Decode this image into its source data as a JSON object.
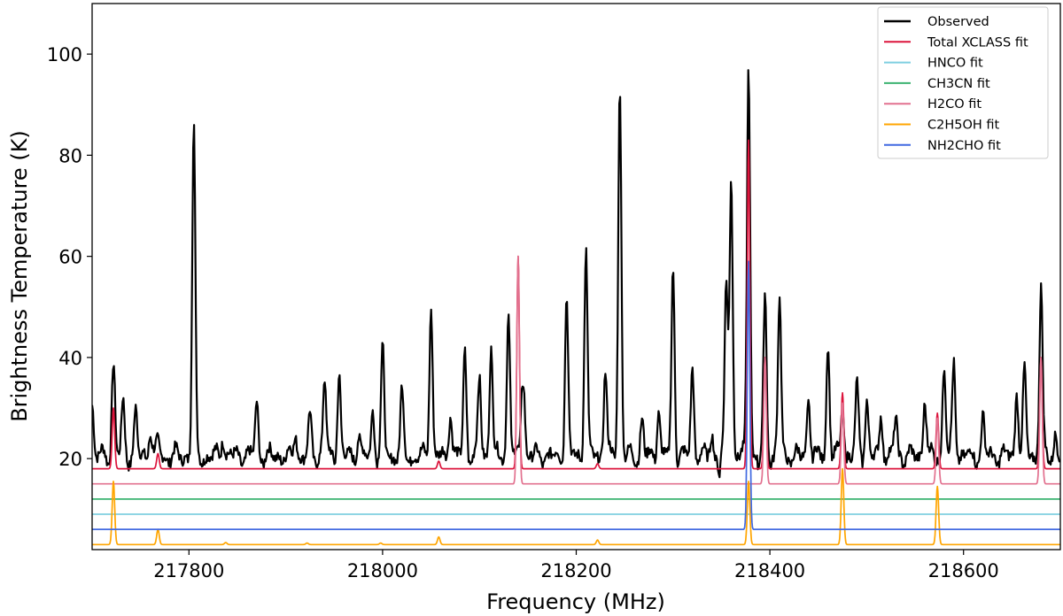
{
  "chart_data": {
    "type": "line",
    "xlabel": "Frequency (MHz)",
    "ylabel": "Brightness Temperature (K)",
    "xlim": [
      217700,
      218700
    ],
    "ylim": [
      2,
      110
    ],
    "x_ticks": [
      217800,
      218000,
      218200,
      218400,
      218600
    ],
    "x_tick_labels": [
      "217800",
      "218000",
      "218200",
      "218400",
      "218600"
    ],
    "y_ticks": [
      20,
      40,
      60,
      80,
      100
    ],
    "y_tick_labels": [
      "20",
      "40",
      "60",
      "80",
      "100"
    ],
    "grid": false,
    "legend_position": "top-right",
    "colors": {
      "observed": "#000000",
      "total": "#dc143c",
      "hnco": "#7fcfe0",
      "ch3cn": "#3cb371",
      "h2co": "#e2718f",
      "c2h5oh": "#ffa500",
      "nh2cho": "#4169e1"
    },
    "series": [
      {
        "name": "Observed",
        "key": "observed",
        "baseline": 20.5,
        "peaks": [
          [
            217700,
            31
          ],
          [
            217722,
            39
          ],
          [
            217732,
            31
          ],
          [
            217745,
            29
          ],
          [
            217760,
            26
          ],
          [
            217768,
            23
          ],
          [
            217805,
            85
          ],
          [
            217835,
            25
          ],
          [
            217870,
            31
          ],
          [
            217910,
            25
          ],
          [
            217925,
            28
          ],
          [
            217940,
            36
          ],
          [
            217955,
            37
          ],
          [
            217975,
            25
          ],
          [
            217990,
            30
          ],
          [
            218000,
            41
          ],
          [
            218020,
            33
          ],
          [
            218050,
            51
          ],
          [
            218070,
            30
          ],
          [
            218085,
            41
          ],
          [
            218100,
            36
          ],
          [
            218112,
            43
          ],
          [
            218130,
            49
          ],
          [
            218145,
            44
          ],
          [
            218190,
            53
          ],
          [
            218210,
            62
          ],
          [
            218230,
            38
          ],
          [
            218245,
            95
          ],
          [
            218268,
            28
          ],
          [
            218285,
            30
          ],
          [
            218300,
            58
          ],
          [
            218320,
            38
          ],
          [
            218340,
            25
          ],
          [
            218355,
            55
          ],
          [
            218360,
            77
          ],
          [
            218378,
            99
          ],
          [
            218395,
            52
          ],
          [
            218410,
            52
          ],
          [
            218440,
            32
          ],
          [
            218460,
            43
          ],
          [
            218475,
            30
          ],
          [
            218490,
            34
          ],
          [
            218500,
            32
          ],
          [
            218515,
            29
          ],
          [
            218530,
            28
          ],
          [
            218560,
            32
          ],
          [
            218580,
            39
          ],
          [
            218590,
            39
          ],
          [
            218620,
            28
          ],
          [
            218655,
            34
          ],
          [
            218663,
            37
          ],
          [
            218680,
            54
          ],
          [
            218695,
            25
          ]
        ],
        "dips": [
          [
            218145,
            13
          ],
          [
            218348,
            17
          ],
          [
            218388,
            18
          ]
        ]
      },
      {
        "name": "Total XCLASS fit",
        "key": "total",
        "baseline": 18,
        "peaks": [
          [
            217722,
            30
          ],
          [
            217768,
            21
          ],
          [
            218058,
            19.5
          ],
          [
            218222,
            19
          ],
          [
            218140,
            60
          ],
          [
            218378,
            83
          ],
          [
            218395,
            40
          ],
          [
            218475,
            33
          ],
          [
            218573,
            29
          ],
          [
            218680,
            40
          ]
        ]
      },
      {
        "name": "HNCO fit",
        "key": "hnco",
        "baseline": 9,
        "peaks": []
      },
      {
        "name": "CH3CN fit",
        "key": "ch3cn",
        "baseline": 12,
        "peaks": []
      },
      {
        "name": "H2CO fit",
        "key": "h2co",
        "baseline": 15,
        "peaks": [
          [
            218140,
            60
          ],
          [
            218395,
            40
          ],
          [
            218475,
            31
          ],
          [
            218573,
            28
          ],
          [
            218680,
            40
          ]
        ]
      },
      {
        "name": "C2H5OH fit",
        "key": "c2h5oh",
        "baseline": 3,
        "peaks": [
          [
            217722,
            15.5
          ],
          [
            217768,
            6
          ],
          [
            217838,
            3.4
          ],
          [
            217922,
            3.3
          ],
          [
            217998,
            3.3
          ],
          [
            218058,
            4.5
          ],
          [
            218222,
            3.9
          ],
          [
            218378,
            15.5
          ],
          [
            218475,
            18
          ],
          [
            218573,
            14.5
          ]
        ]
      },
      {
        "name": "NH2CHO fit",
        "key": "nh2cho",
        "baseline": 6,
        "peaks": [
          [
            218378,
            59
          ]
        ]
      }
    ]
  }
}
